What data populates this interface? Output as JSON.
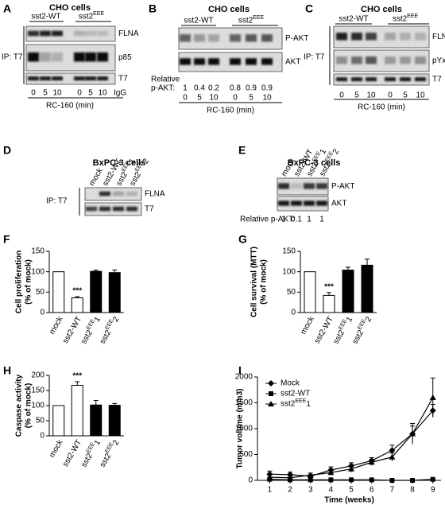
{
  "blots": [
    {
      "letter": "A",
      "title": "CHO cells",
      "groups": [
        "sst2-WT",
        "sst2EEE"
      ],
      "bands": [
        "FLNA",
        "p85",
        "T7"
      ],
      "side_label": "IP: T7",
      "lanes": [
        0,
        5,
        10,
        0,
        5,
        10,
        "IgG"
      ],
      "axis_label": "RC-160 (min)"
    },
    {
      "letter": "B",
      "title": "CHO cells",
      "groups": [
        "sst2-WT",
        "sst2EEE"
      ],
      "bands": [
        "P-AKT",
        "AKT"
      ],
      "relative": {
        "label": [
          "Relative",
          "p-AKT:"
        ],
        "values": [
          1,
          0.4,
          0.2,
          0.8,
          0.9,
          0.9
        ]
      },
      "lanes": [
        0,
        5,
        10,
        0,
        5,
        10
      ],
      "axis_label": "RC-160 (min)"
    },
    {
      "letter": "C",
      "title": "CHO cells",
      "groups": [
        "sst2-WT",
        "sst2EEE"
      ],
      "bands": [
        "FLNA",
        "pYxxM",
        "T7"
      ],
      "side_label": "IP: T7",
      "lanes": [
        0,
        5,
        10,
        0,
        5,
        10
      ],
      "axis_label": "RC-160 (min)"
    },
    {
      "letter": "D",
      "title": "BxPC-3 cells",
      "lanes": [
        "mock",
        "sst2-WT",
        "sst2EEE1",
        "sst2EEE2"
      ],
      "bands": [
        "FLNA",
        "T7"
      ],
      "side_label": "IP: T7"
    },
    {
      "letter": "E",
      "title": "BxPC-3 cells",
      "lanes": [
        "mock",
        "sst2-WT",
        "sst2EEE1",
        "sst2EEE2"
      ],
      "bands": [
        "P-AKT",
        "AKT"
      ],
      "relative": {
        "label": [
          "Relative p-AKT:"
        ],
        "values": [
          1,
          0.1,
          1,
          1
        ]
      }
    }
  ],
  "chart_data": [
    {
      "letter": "F",
      "type": "bar",
      "ylabel": [
        "Cell proliferation",
        "(% of mock)"
      ],
      "categories": [
        "mock",
        "sst2-WT",
        "sst2EEE1",
        "sst2EEE2"
      ],
      "values": [
        100,
        36,
        101,
        98
      ],
      "errors": [
        0,
        3,
        3,
        6
      ],
      "annotations": [
        null,
        "***",
        null,
        null
      ],
      "colors": [
        "#ffffff",
        "#ffffff",
        "#000000",
        "#000000"
      ],
      "ylim": [
        0,
        150
      ],
      "yticks": [
        0,
        50,
        100,
        150
      ]
    },
    {
      "letter": "G",
      "type": "bar",
      "ylabel": [
        "Cell survival (MTT)",
        "(% of mock)"
      ],
      "categories": [
        "mock",
        "sst2-WT",
        "sst2EEE1",
        "sst2EEE2"
      ],
      "values": [
        100,
        42,
        104,
        116
      ],
      "errors": [
        0,
        7,
        7,
        15
      ],
      "annotations": [
        null,
        "***",
        null,
        null
      ],
      "colors": [
        "#ffffff",
        "#ffffff",
        "#000000",
        "#000000"
      ],
      "ylim": [
        0,
        150
      ],
      "yticks": [
        0,
        50,
        100,
        150
      ]
    },
    {
      "letter": "H",
      "type": "bar",
      "ylabel": [
        "Caspase activity",
        "(% of mock)"
      ],
      "categories": [
        "mock",
        "sst2-WT",
        "sst2EEE1",
        "sst2EEE2"
      ],
      "values": [
        100,
        167,
        102,
        101
      ],
      "errors": [
        0,
        12,
        15,
        6
      ],
      "annotations": [
        null,
        "***",
        null,
        null
      ],
      "colors": [
        "#ffffff",
        "#ffffff",
        "#000000",
        "#000000"
      ],
      "ylim": [
        0,
        200
      ],
      "yticks": [
        0,
        50,
        100,
        150,
        200
      ]
    },
    {
      "letter": "I",
      "type": "line",
      "ylabel": "Tumor volume (mm3)",
      "xlabel": "Time (weeks)",
      "x": [
        1,
        2,
        3,
        4,
        5,
        6,
        7,
        8,
        9
      ],
      "xlim": [
        0.4,
        9.4
      ],
      "xticks": [
        1,
        2,
        3,
        4,
        5,
        6,
        7,
        8,
        9
      ],
      "ylim": [
        0,
        2000
      ],
      "yticks": [
        0,
        500,
        1000,
        1500,
        2000
      ],
      "legend": "upper left",
      "series": [
        {
          "name": "Mock",
          "color": "#000000",
          "marker": "diamond",
          "values": [
            120,
            110,
            80,
            200,
            280,
            380,
            580,
            900,
            1350
          ],
          "errors": [
            60,
            50,
            30,
            60,
            60,
            60,
            100,
            150,
            120
          ]
        },
        {
          "name": "sst2-WT",
          "color": "#000000",
          "marker": "square",
          "values": [
            20,
            10,
            10,
            10,
            10,
            10,
            0,
            0,
            20
          ],
          "errors": [
            10,
            10,
            5,
            5,
            5,
            5,
            5,
            5,
            10
          ]
        },
        {
          "name": "sst2EEE1",
          "color": "#000000",
          "marker": "triangle",
          "values": [
            60,
            50,
            100,
            150,
            220,
            350,
            450,
            900,
            1600
          ],
          "errors": [
            40,
            30,
            40,
            50,
            60,
            60,
            80,
            200,
            380
          ]
        }
      ]
    }
  ]
}
